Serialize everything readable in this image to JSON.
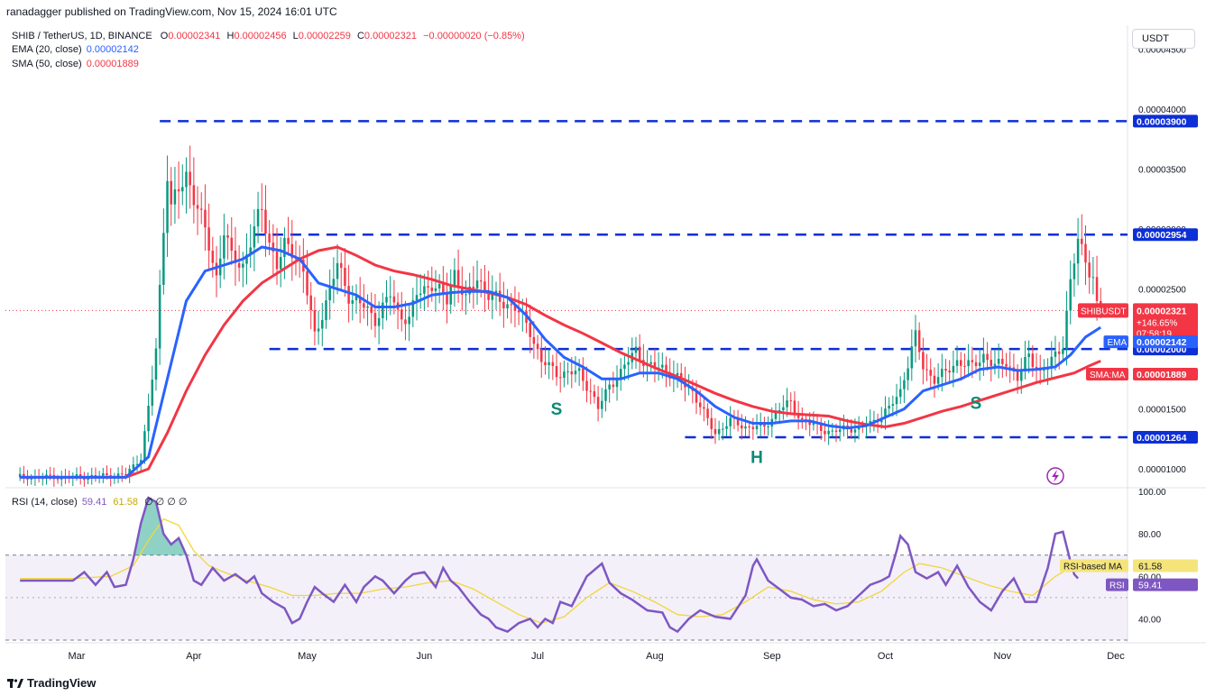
{
  "header": {
    "publisher": "ranadagger published on TradingView.com, Nov 15, 2024 16:01 UTC"
  },
  "legend": {
    "symbol": "SHIB / TetherUS, 1D, BINANCE",
    "open_label": "O",
    "open": "0.00002341",
    "high_label": "H",
    "high": "0.00002456",
    "low_label": "L",
    "low": "0.00002259",
    "close_label": "C",
    "close": "0.00002321",
    "change": "−0.00000020 (−0.85%)",
    "ema_label": "EMA (20, close)",
    "ema_value": "0.00002142",
    "sma_label": "SMA (50, close)",
    "sma_value": "0.00001889",
    "rsi_label": "RSI (14, close)",
    "rsi_value": "59.41",
    "rsi_ma_value": "61.58",
    "rsi_extra": "∅ ∅ ∅ ∅"
  },
  "currency_button": "USDT",
  "footer": {
    "brand": "TradingView"
  },
  "chart_data": {
    "type": "candlestick",
    "symbol": "SHIBUSDT",
    "price_ylim": [
      8.5e-06,
      4.7e-05
    ],
    "price_ticks": [
      "0.00001000",
      "0.00001500",
      "0.00002000",
      "0.00002500",
      "0.00003000",
      "0.00003500",
      "0.00004000",
      "0.00004500"
    ],
    "price_tick_values": [
      1e-05,
      1.5e-05,
      2e-05,
      2.5e-05,
      3e-05,
      3.5e-05,
      4e-05,
      4.5e-05
    ],
    "x_ticks": [
      "Mar",
      "Apr",
      "May",
      "Jun",
      "Jul",
      "Aug",
      "Sep",
      "Oct",
      "Nov",
      "Dec"
    ],
    "x_tick_days": [
      1,
      32,
      62,
      93,
      123,
      154,
      185,
      215,
      246,
      276
    ],
    "last_day": 259,
    "anchors": [
      [
        0,
        9.3e-06
      ],
      [
        14,
        9.5e-06
      ],
      [
        18,
        1.1e-05
      ],
      [
        20,
        1.5e-05
      ],
      [
        22,
        2e-05
      ],
      [
        24,
        3e-05
      ],
      [
        25,
        3.5e-05
      ],
      [
        26,
        3.2e-05
      ],
      [
        28,
        3.3e-05
      ],
      [
        30,
        3.45e-05
      ],
      [
        33,
        3.2e-05
      ],
      [
        36,
        2.85e-05
      ],
      [
        38,
        2.6e-05
      ],
      [
        40,
        3e-05
      ],
      [
        42,
        2.75e-05
      ],
      [
        45,
        2.7e-05
      ],
      [
        48,
        3e-05
      ],
      [
        50,
        3.15e-05
      ],
      [
        52,
        2.9e-05
      ],
      [
        54,
        2.7e-05
      ],
      [
        56,
        2.85e-05
      ],
      [
        59,
        2.8e-05
      ],
      [
        61,
        2.65e-05
      ],
      [
        64,
        2.1e-05
      ],
      [
        66,
        2.3e-05
      ],
      [
        70,
        2.7e-05
      ],
      [
        73,
        2.45e-05
      ],
      [
        77,
        2.35e-05
      ],
      [
        80,
        2.25e-05
      ],
      [
        84,
        2.45e-05
      ],
      [
        86,
        2.3e-05
      ],
      [
        89,
        2.25e-05
      ],
      [
        91,
        2.45e-05
      ],
      [
        95,
        2.55e-05
      ],
      [
        99,
        2.4e-05
      ],
      [
        101,
        2.65e-05
      ],
      [
        104,
        2.4e-05
      ],
      [
        107,
        2.6e-05
      ],
      [
        110,
        2.45e-05
      ],
      [
        113,
        2.4e-05
      ],
      [
        117,
        2.35e-05
      ],
      [
        121,
        2.15e-05
      ],
      [
        124,
        1.9e-05
      ],
      [
        128,
        1.8e-05
      ],
      [
        134,
        1.8e-05
      ],
      [
        137,
        1.65e-05
      ],
      [
        139,
        1.5e-05
      ],
      [
        142,
        1.7e-05
      ],
      [
        145,
        1.8e-05
      ],
      [
        149,
        2e-05
      ],
      [
        152,
        1.85e-05
      ],
      [
        156,
        1.85e-05
      ],
      [
        160,
        1.75e-05
      ],
      [
        164,
        1.65e-05
      ],
      [
        168,
        1.4e-05
      ],
      [
        170,
        1.3e-05
      ],
      [
        174,
        1.4e-05
      ],
      [
        178,
        1.35e-05
      ],
      [
        183,
        1.35e-05
      ],
      [
        187,
        1.5e-05
      ],
      [
        190,
        1.55e-05
      ],
      [
        193,
        1.4e-05
      ],
      [
        197,
        1.35e-05
      ],
      [
        201,
        1.3e-05
      ],
      [
        205,
        1.35e-05
      ],
      [
        208,
        1.33e-05
      ],
      [
        212,
        1.4e-05
      ],
      [
        216,
        1.5e-05
      ],
      [
        219,
        1.65e-05
      ],
      [
        222,
        2e-05
      ],
      [
        223,
        2.1e-05
      ],
      [
        225,
        1.85e-05
      ],
      [
        228,
        1.75e-05
      ],
      [
        231,
        1.8e-05
      ],
      [
        234,
        1.9e-05
      ],
      [
        238,
        1.85e-05
      ],
      [
        241,
        1.95e-05
      ],
      [
        244,
        1.85e-05
      ],
      [
        247,
        1.9e-05
      ],
      [
        250,
        1.75e-05
      ],
      [
        253,
        1.95e-05
      ],
      [
        256,
        1.8e-05
      ],
      [
        258,
        1.85e-05
      ],
      [
        260,
        1.95e-05
      ],
      [
        262,
        2.05e-05
      ],
      [
        264,
        2.55e-05
      ],
      [
        266,
        2.9e-05
      ],
      [
        268,
        2.75e-05
      ],
      [
        270,
        2.6e-05
      ],
      [
        271,
        2.35e-05
      ],
      [
        272,
        2.32e-05
      ]
    ],
    "ema_anchors": [
      [
        14,
        9.3e-06
      ],
      [
        20,
        1.1e-05
      ],
      [
        25,
        1.75e-05
      ],
      [
        30,
        2.4e-05
      ],
      [
        35,
        2.65e-05
      ],
      [
        40,
        2.7e-05
      ],
      [
        45,
        2.75e-05
      ],
      [
        50,
        2.85e-05
      ],
      [
        55,
        2.82e-05
      ],
      [
        60,
        2.75e-05
      ],
      [
        65,
        2.55e-05
      ],
      [
        70,
        2.5e-05
      ],
      [
        75,
        2.45e-05
      ],
      [
        80,
        2.35e-05
      ],
      [
        85,
        2.35e-05
      ],
      [
        90,
        2.38e-05
      ],
      [
        95,
        2.45e-05
      ],
      [
        100,
        2.47e-05
      ],
      [
        105,
        2.48e-05
      ],
      [
        110,
        2.48e-05
      ],
      [
        115,
        2.43e-05
      ],
      [
        120,
        2.28e-05
      ],
      [
        125,
        2.08e-05
      ],
      [
        130,
        1.93e-05
      ],
      [
        135,
        1.85e-05
      ],
      [
        140,
        1.75e-05
      ],
      [
        145,
        1.75e-05
      ],
      [
        150,
        1.8e-05
      ],
      [
        155,
        1.8e-05
      ],
      [
        160,
        1.75e-05
      ],
      [
        165,
        1.65e-05
      ],
      [
        170,
        1.52e-05
      ],
      [
        175,
        1.43e-05
      ],
      [
        180,
        1.38e-05
      ],
      [
        185,
        1.38e-05
      ],
      [
        190,
        1.4e-05
      ],
      [
        195,
        1.4e-05
      ],
      [
        200,
        1.36e-05
      ],
      [
        205,
        1.34e-05
      ],
      [
        210,
        1.36e-05
      ],
      [
        215,
        1.43e-05
      ],
      [
        220,
        1.5e-05
      ],
      [
        225,
        1.65e-05
      ],
      [
        230,
        1.7e-05
      ],
      [
        235,
        1.75e-05
      ],
      [
        240,
        1.83e-05
      ],
      [
        245,
        1.85e-05
      ],
      [
        250,
        1.82e-05
      ],
      [
        255,
        1.83e-05
      ],
      [
        260,
        1.85e-05
      ],
      [
        264,
        1.95e-05
      ],
      [
        268,
        2.1e-05
      ],
      [
        272,
        2.18e-05
      ]
    ],
    "sma_anchors": [
      [
        14,
        9.3e-06
      ],
      [
        20,
        1e-05
      ],
      [
        25,
        1.3e-05
      ],
      [
        30,
        1.65e-05
      ],
      [
        35,
        1.95e-05
      ],
      [
        40,
        2.2e-05
      ],
      [
        45,
        2.4e-05
      ],
      [
        50,
        2.55e-05
      ],
      [
        55,
        2.65e-05
      ],
      [
        60,
        2.75e-05
      ],
      [
        65,
        2.82e-05
      ],
      [
        70,
        2.85e-05
      ],
      [
        75,
        2.78e-05
      ],
      [
        80,
        2.7e-05
      ],
      [
        85,
        2.65e-05
      ],
      [
        90,
        2.62e-05
      ],
      [
        95,
        2.58e-05
      ],
      [
        100,
        2.53e-05
      ],
      [
        105,
        2.5e-05
      ],
      [
        110,
        2.47e-05
      ],
      [
        115,
        2.43e-05
      ],
      [
        120,
        2.37e-05
      ],
      [
        125,
        2.28e-05
      ],
      [
        130,
        2.2e-05
      ],
      [
        135,
        2.13e-05
      ],
      [
        140,
        2.05e-05
      ],
      [
        145,
        1.97e-05
      ],
      [
        150,
        1.9e-05
      ],
      [
        155,
        1.83e-05
      ],
      [
        160,
        1.77e-05
      ],
      [
        165,
        1.7e-05
      ],
      [
        170,
        1.63e-05
      ],
      [
        175,
        1.57e-05
      ],
      [
        180,
        1.52e-05
      ],
      [
        185,
        1.48e-05
      ],
      [
        190,
        1.46e-05
      ],
      [
        195,
        1.45e-05
      ],
      [
        200,
        1.44e-05
      ],
      [
        205,
        1.4e-05
      ],
      [
        210,
        1.37e-05
      ],
      [
        215,
        1.35e-05
      ],
      [
        220,
        1.38e-05
      ],
      [
        225,
        1.43e-05
      ],
      [
        230,
        1.48e-05
      ],
      [
        235,
        1.52e-05
      ],
      [
        240,
        1.57e-05
      ],
      [
        245,
        1.62e-05
      ],
      [
        250,
        1.67e-05
      ],
      [
        255,
        1.72e-05
      ],
      [
        260,
        1.76e-05
      ],
      [
        265,
        1.8e-05
      ],
      [
        269,
        1.86e-05
      ],
      [
        272,
        1.9e-05
      ]
    ],
    "levels": [
      {
        "value": 3.9e-05,
        "label": "0.00003900",
        "x_start_day": 23
      },
      {
        "value": 2.954e-05,
        "label": "0.00002954",
        "x_start_day": 48
      },
      {
        "value": 2e-05,
        "label": "0.00002000",
        "x_start_day": 52
      },
      {
        "value": 1.264e-05,
        "label": "0.00001264",
        "x_start_day": 162
      }
    ],
    "price_tags": [
      {
        "label": "SHIBUSDT",
        "value": "0.00002321",
        "extra": [
          "+146.65%",
          "07:58:19"
        ],
        "price": 2.321e-05,
        "color": "#f23645"
      },
      {
        "label": "EMA",
        "value": "0.00002142",
        "price": 2.142e-05,
        "color": "#2962ff"
      },
      {
        "label": "SMA:MA",
        "value": "0.00001889",
        "price": 1.889e-05,
        "color": "#f23645"
      }
    ],
    "annotations": [
      {
        "text": "S",
        "day": 128,
        "price": 1.45e-05
      },
      {
        "text": "H",
        "day": 181,
        "price": 1.05e-05
      },
      {
        "text": "S",
        "day": 239,
        "price": 1.5e-05
      }
    ],
    "rsi": {
      "ylim": [
        30,
        100
      ],
      "ticks": [
        "100.00",
        "80.00",
        "60.00",
        "40.00"
      ],
      "tick_values": [
        100,
        80,
        60,
        40
      ],
      "band": [
        30,
        70
      ],
      "midline": 50,
      "rsi_tag_label": "RSI",
      "rsi_tag_value": "59.41",
      "ma_tag_label": "RSI-based MA",
      "ma_tag_value": "61.58",
      "anchors": [
        [
          0,
          58
        ],
        [
          3,
          62
        ],
        [
          6,
          56
        ],
        [
          9,
          62
        ],
        [
          11,
          55
        ],
        [
          14,
          56
        ],
        [
          16,
          68
        ],
        [
          18,
          85
        ],
        [
          20,
          97
        ],
        [
          22,
          95
        ],
        [
          24,
          80
        ],
        [
          26,
          75
        ],
        [
          28,
          78
        ],
        [
          30,
          70
        ],
        [
          32,
          58
        ],
        [
          34,
          56
        ],
        [
          37,
          64
        ],
        [
          40,
          58
        ],
        [
          43,
          61
        ],
        [
          46,
          57
        ],
        [
          48,
          60
        ],
        [
          50,
          52
        ],
        [
          53,
          48
        ],
        [
          56,
          45
        ],
        [
          58,
          38
        ],
        [
          60,
          40
        ],
        [
          62,
          48
        ],
        [
          64,
          55
        ],
        [
          66,
          52
        ],
        [
          69,
          48
        ],
        [
          72,
          56
        ],
        [
          75,
          48
        ],
        [
          77,
          55
        ],
        [
          80,
          60
        ],
        [
          82,
          58
        ],
        [
          85,
          52
        ],
        [
          88,
          58
        ],
        [
          90,
          61
        ],
        [
          93,
          62
        ],
        [
          96,
          55
        ],
        [
          98,
          64
        ],
        [
          100,
          58
        ],
        [
          102,
          55
        ],
        [
          105,
          48
        ],
        [
          108,
          42
        ],
        [
          110,
          40
        ],
        [
          112,
          36
        ],
        [
          115,
          34
        ],
        [
          118,
          38
        ],
        [
          121,
          40
        ],
        [
          123,
          36
        ],
        [
          125,
          40
        ],
        [
          127,
          38
        ],
        [
          129,
          48
        ],
        [
          132,
          46
        ],
        [
          136,
          60
        ],
        [
          140,
          66
        ],
        [
          142,
          57
        ],
        [
          145,
          52
        ],
        [
          148,
          49
        ],
        [
          152,
          44
        ],
        [
          156,
          43
        ],
        [
          158,
          36
        ],
        [
          160,
          34
        ],
        [
          163,
          40
        ],
        [
          166,
          44
        ],
        [
          170,
          41
        ],
        [
          174,
          40
        ],
        [
          178,
          51
        ],
        [
          180,
          65
        ],
        [
          181,
          68
        ],
        [
          184,
          58
        ],
        [
          187,
          54
        ],
        [
          190,
          50
        ],
        [
          193,
          49
        ],
        [
          196,
          46
        ],
        [
          199,
          47
        ],
        [
          202,
          44
        ],
        [
          205,
          46
        ],
        [
          208,
          51
        ],
        [
          211,
          56
        ],
        [
          214,
          58
        ],
        [
          216,
          60
        ],
        [
          218,
          72
        ],
        [
          219,
          79
        ],
        [
          221,
          75
        ],
        [
          223,
          62
        ],
        [
          226,
          59
        ],
        [
          229,
          62
        ],
        [
          231,
          56
        ],
        [
          234,
          65
        ],
        [
          237,
          55
        ],
        [
          240,
          48
        ],
        [
          243,
          44
        ],
        [
          246,
          53
        ],
        [
          249,
          59
        ],
        [
          252,
          48
        ],
        [
          255,
          48
        ],
        [
          258,
          64
        ],
        [
          260,
          80
        ],
        [
          262,
          81
        ],
        [
          264,
          67
        ],
        [
          265,
          61
        ],
        [
          266,
          59
        ]
      ],
      "ma_anchors": [
        [
          0,
          59
        ],
        [
          10,
          60
        ],
        [
          16,
          65
        ],
        [
          20,
          77
        ],
        [
          24,
          87
        ],
        [
          28,
          84
        ],
        [
          32,
          72
        ],
        [
          36,
          65
        ],
        [
          40,
          62
        ],
        [
          46,
          58
        ],
        [
          52,
          55
        ],
        [
          58,
          51
        ],
        [
          64,
          51
        ],
        [
          70,
          52
        ],
        [
          76,
          52
        ],
        [
          82,
          54
        ],
        [
          88,
          55
        ],
        [
          94,
          57
        ],
        [
          100,
          58
        ],
        [
          106,
          54
        ],
        [
          112,
          48
        ],
        [
          118,
          42
        ],
        [
          124,
          38
        ],
        [
          130,
          41
        ],
        [
          136,
          50
        ],
        [
          142,
          57
        ],
        [
          148,
          53
        ],
        [
          154,
          48
        ],
        [
          160,
          42
        ],
        [
          166,
          41
        ],
        [
          172,
          42
        ],
        [
          178,
          48
        ],
        [
          184,
          55
        ],
        [
          190,
          53
        ],
        [
          196,
          49
        ],
        [
          202,
          47
        ],
        [
          208,
          48
        ],
        [
          214,
          53
        ],
        [
          220,
          62
        ],
        [
          224,
          66
        ],
        [
          230,
          64
        ],
        [
          236,
          60
        ],
        [
          242,
          56
        ],
        [
          248,
          53
        ],
        [
          254,
          51
        ],
        [
          260,
          60
        ],
        [
          264,
          64
        ],
        [
          266,
          62
        ]
      ]
    }
  }
}
